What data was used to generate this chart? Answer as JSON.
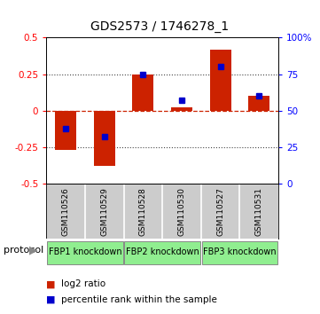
{
  "title": "GDS2573 / 1746278_1",
  "samples": [
    "GSM110526",
    "GSM110529",
    "GSM110528",
    "GSM110530",
    "GSM110527",
    "GSM110531"
  ],
  "log2_ratio": [
    -0.27,
    -0.38,
    0.25,
    0.02,
    0.42,
    0.1
  ],
  "percentile_rank": [
    38,
    32,
    75,
    57,
    80,
    60
  ],
  "groups": [
    {
      "label": "FBP1 knockdown",
      "spans": [
        0,
        1
      ],
      "color": "#90EE90"
    },
    {
      "label": "FBP2 knockdown",
      "spans": [
        2,
        3
      ],
      "color": "#90EE90"
    },
    {
      "label": "FBP3 knockdown",
      "spans": [
        4,
        5
      ],
      "color": "#90EE90"
    }
  ],
  "ylim_left": [
    -0.5,
    0.5
  ],
  "ylim_right": [
    0,
    100
  ],
  "bar_color": "#CC2200",
  "percentile_color": "#0000CC",
  "zero_line_color": "#CC2200",
  "dotted_line_color": "#444444",
  "bg_color": "#FFFFFF",
  "plot_bg": "#FFFFFF",
  "sample_bg": "#CCCCCC",
  "bar_width": 0.55,
  "protocol_label": "protocol",
  "legend_log2": "log2 ratio",
  "legend_pct": "percentile rank within the sample"
}
